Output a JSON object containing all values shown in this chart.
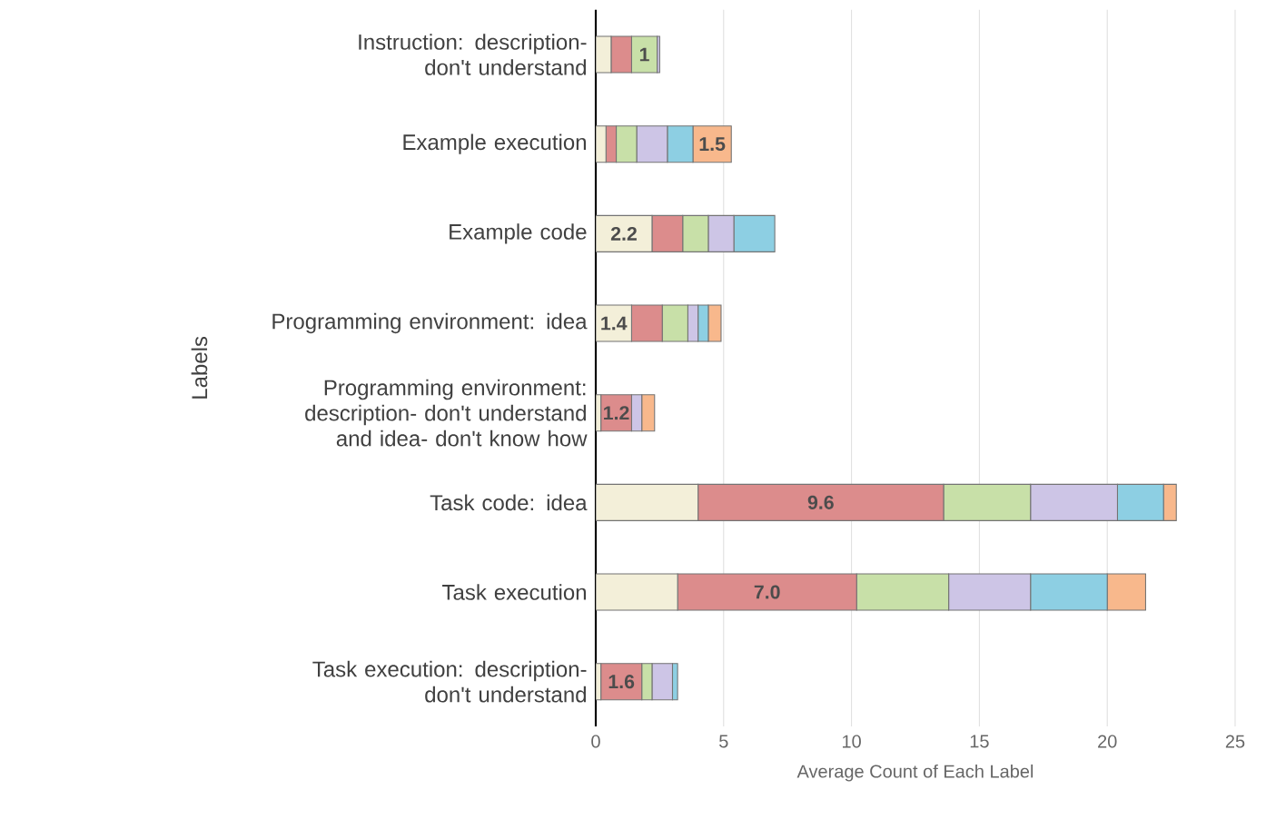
{
  "chart_data": {
    "type": "bar",
    "orientation": "horizontal",
    "stacked": true,
    "xlabel": "Average Count of Each Label",
    "ylabel": "Labels",
    "categories": [
      "Instruction: description- don't understand",
      "Example execution",
      "Example code",
      "Programming environment: idea",
      "Programming environment: description- don't understand and idea- don't know how",
      "Task code: idea",
      "Task execution",
      "Task execution: description- don't understand"
    ],
    "series": [
      {
        "color": "#f3efd9",
        "values": [
          0.6,
          0.4,
          2.2,
          1.4,
          0.2,
          4.0,
          3.2,
          0.2
        ],
        "value_labels": [
          null,
          null,
          "2.2",
          "1.4",
          null,
          null,
          null,
          null
        ]
      },
      {
        "color": "#dc8c8c",
        "values": [
          0.8,
          0.4,
          1.2,
          1.2,
          1.2,
          9.6,
          7.0,
          1.6
        ],
        "value_labels": [
          null,
          null,
          null,
          null,
          "1.2",
          "9.6",
          "7.0",
          "1.6"
        ]
      },
      {
        "color": "#c8e0a8",
        "values": [
          1.0,
          0.8,
          1.0,
          1.0,
          0,
          3.4,
          3.6,
          0.4
        ],
        "value_labels": [
          "1",
          null,
          null,
          null,
          null,
          null,
          null,
          null
        ]
      },
      {
        "color": "#cdc5e6",
        "values": [
          0.1,
          1.2,
          1.0,
          0.4,
          0.4,
          3.4,
          3.2,
          0.8
        ],
        "value_labels": [
          null,
          null,
          null,
          null,
          null,
          null,
          null,
          null
        ]
      },
      {
        "color": "#8dcfe3",
        "values": [
          null,
          1.0,
          1.6,
          0.4,
          0,
          1.8,
          3.0,
          0.2
        ],
        "value_labels": [
          null,
          null,
          null,
          null,
          null,
          null,
          null,
          null
        ]
      },
      {
        "color": "#f8b88c",
        "values": [
          0,
          1.5,
          0,
          0.5,
          0.5,
          0.5,
          1.5,
          0
        ],
        "value_labels": [
          null,
          "1.5",
          null,
          null,
          null,
          null,
          null,
          null
        ]
      }
    ],
    "xlim": [
      0,
      25
    ],
    "xticks": [
      0,
      5,
      10,
      15,
      20,
      25
    ],
    "grid": "x"
  }
}
